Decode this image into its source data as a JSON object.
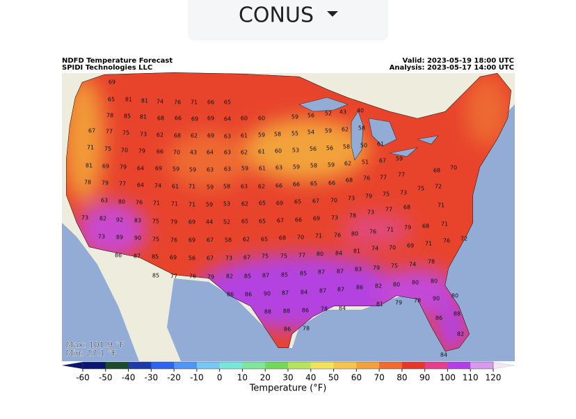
{
  "toolbar": {
    "region": "CONUS"
  },
  "map": {
    "title": "NDFD Temperature Forecast",
    "source": "SPIDI Technologies LLC",
    "valid": "Valid: 2023-05-19 18:00 UTC",
    "analysis": "Analysis: 2023-05-17 14:00 UTC",
    "max": "Max: 101.9 °F",
    "min": "Min: 27.1 °F",
    "labels": [
      69,
      65,
      81,
      81,
      74,
      76,
      71,
      66,
      65,
      78,
      85,
      81,
      68,
      66,
      69,
      69,
      64,
      60,
      60,
      59,
      56,
      52,
      43,
      40,
      67,
      77,
      75,
      73,
      62,
      68,
      62,
      69,
      63,
      61,
      59,
      58,
      55,
      54,
      59,
      62,
      58,
      71,
      75,
      70,
      79,
      66,
      70,
      43,
      64,
      63,
      62,
      61,
      60,
      53,
      56,
      56,
      58,
      50,
      61,
      81,
      69,
      79,
      64,
      69,
      59,
      59,
      63,
      63,
      59,
      61,
      63,
      59,
      58,
      59,
      62,
      51,
      67,
      59,
      68,
      70,
      78,
      79,
      77,
      64,
      74,
      61,
      71,
      59,
      58,
      63,
      62,
      66,
      66,
      65,
      66,
      68,
      76,
      77,
      77,
      63,
      80,
      76,
      71,
      71,
      71,
      59,
      53,
      62,
      65,
      69,
      65,
      67,
      70,
      73,
      79,
      75,
      73,
      75,
      72,
      73,
      82,
      92,
      83,
      75,
      79,
      69,
      44,
      52,
      65,
      65,
      67,
      66,
      69,
      73,
      78,
      73,
      77,
      68,
      71,
      73,
      89,
      90,
      75,
      76,
      69,
      67,
      58,
      62,
      65,
      68,
      70,
      71,
      76,
      80,
      76,
      71,
      79,
      68,
      71,
      72,
      86,
      87,
      85,
      69,
      56,
      67,
      73,
      67,
      75,
      75,
      77,
      80,
      84,
      81,
      74,
      70,
      69,
      71,
      76,
      85,
      77,
      76,
      79,
      82,
      85,
      87,
      85,
      85,
      87,
      87,
      83,
      79,
      75,
      74,
      78,
      86,
      86,
      90,
      87,
      84,
      87,
      87,
      86,
      82,
      80,
      80,
      80,
      88,
      88,
      86,
      78,
      84,
      81,
      79,
      78,
      90,
      80,
      86,
      78,
      86,
      88,
      82,
      84
    ]
  },
  "colorbar": {
    "label": "Temperature (°F)",
    "ticks": [
      -60,
      -50,
      -40,
      -30,
      -20,
      -10,
      0,
      10,
      20,
      30,
      40,
      50,
      60,
      70,
      80,
      90,
      100,
      110,
      120
    ],
    "colors": [
      "#0b1670",
      "#1d4a2a",
      "#1f3aa6",
      "#2f63ee",
      "#4f95f4",
      "#78c6f2",
      "#78e6d8",
      "#7ee69a",
      "#74d85a",
      "#b8e45c",
      "#f3e35a",
      "#f6c44d",
      "#f4a13c",
      "#ef6b30",
      "#e6372b",
      "#e33f8c",
      "#b340e6",
      "#d69bec",
      "#f2e6f6"
    ]
  }
}
